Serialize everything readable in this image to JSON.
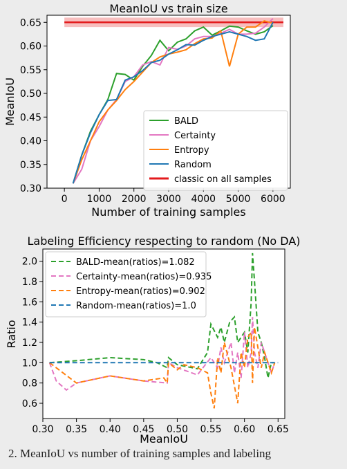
{
  "chart_data": [
    {
      "type": "line",
      "title": "MeanIoU vs train size",
      "xlabel": "Number of training samples",
      "ylabel": "MeanIoU",
      "xlim": [
        -500,
        6500
      ],
      "ylim": [
        0.3,
        0.665
      ],
      "xticks": [
        0,
        1000,
        2000,
        3000,
        4000,
        5000,
        6000
      ],
      "yticks": [
        0.3,
        0.35,
        0.4,
        0.45,
        0.5,
        0.55,
        0.6,
        0.65
      ],
      "grid": false,
      "legend_position": "lower-right",
      "reference_line": {
        "name": "classic on all samples",
        "value": 0.65,
        "band": [
          0.64,
          0.66
        ],
        "color": "#e31a1c",
        "band_color": "#f4a3a3"
      },
      "series": [
        {
          "name": "BALD",
          "color": "#2ca02c",
          "x": [
            250,
            500,
            750,
            1000,
            1250,
            1500,
            1750,
            2000,
            2250,
            2500,
            2750,
            3000,
            3250,
            3500,
            3750,
            4000,
            4250,
            4500,
            4750,
            5000,
            5250,
            5500,
            5750,
            6000
          ],
          "y": [
            0.31,
            0.37,
            0.42,
            0.455,
            0.487,
            0.542,
            0.54,
            0.528,
            0.557,
            0.58,
            0.612,
            0.59,
            0.608,
            0.615,
            0.632,
            0.64,
            0.623,
            0.632,
            0.642,
            0.64,
            0.632,
            0.625,
            0.63,
            0.643
          ]
        },
        {
          "name": "Certainty",
          "color": "#e377c2",
          "x": [
            250,
            500,
            750,
            1000,
            1250,
            1500,
            1750,
            2000,
            2250,
            2500,
            2750,
            3000,
            3250,
            3500,
            3750,
            4000,
            4250,
            4500,
            4750,
            5000,
            5250,
            5500,
            5750,
            6000
          ],
          "y": [
            0.31,
            0.34,
            0.4,
            0.43,
            0.465,
            0.487,
            0.525,
            0.535,
            0.56,
            0.567,
            0.56,
            0.597,
            0.593,
            0.6,
            0.615,
            0.62,
            0.62,
            0.627,
            0.635,
            0.625,
            0.625,
            0.627,
            0.64,
            0.658
          ]
        },
        {
          "name": "Entropy",
          "color": "#ff7f0e",
          "x": [
            250,
            500,
            750,
            1000,
            1250,
            1500,
            1750,
            2000,
            2250,
            2500,
            2750,
            3000,
            3250,
            3500,
            3750,
            4000,
            4250,
            4500,
            4750,
            5000,
            5250,
            5500,
            5750,
            6000
          ],
          "y": [
            0.31,
            0.36,
            0.4,
            0.44,
            0.465,
            0.485,
            0.508,
            0.525,
            0.545,
            0.565,
            0.577,
            0.583,
            0.587,
            0.592,
            0.605,
            0.615,
            0.617,
            0.632,
            0.557,
            0.625,
            0.64,
            0.64,
            0.653,
            0.648
          ]
        },
        {
          "name": "Random",
          "color": "#1f77b4",
          "x": [
            250,
            500,
            750,
            1000,
            1250,
            1500,
            1750,
            2000,
            2250,
            2500,
            2750,
            3000,
            3250,
            3500,
            3750,
            4000,
            4250,
            4500,
            4750,
            5000,
            5250,
            5500,
            5750,
            6000
          ],
          "y": [
            0.31,
            0.37,
            0.417,
            0.455,
            0.485,
            0.487,
            0.528,
            0.535,
            0.548,
            0.565,
            0.57,
            0.583,
            0.592,
            0.603,
            0.602,
            0.612,
            0.62,
            0.625,
            0.63,
            0.625,
            0.62,
            0.612,
            0.615,
            0.65
          ]
        }
      ]
    },
    {
      "type": "line",
      "title": "Labeling Efficiency respecting to random (No DA)",
      "xlabel": "MeanIoU",
      "ylabel": "Ratio",
      "xlim": [
        0.3,
        0.66
      ],
      "ylim": [
        0.45,
        2.12
      ],
      "xticks": [
        0.3,
        0.35,
        0.4,
        0.45,
        0.5,
        0.55,
        0.6,
        0.65
      ],
      "yticks": [
        0.6,
        0.8,
        1.0,
        1.2,
        1.4,
        1.6,
        1.8,
        2.0
      ],
      "grid": false,
      "legend_position": "top-left",
      "series": [
        {
          "name": "BALD-mean(ratios)=1.082",
          "color": "#2ca02c",
          "dashed": true,
          "x": [
            0.31,
            0.35,
            0.4,
            0.45,
            0.47,
            0.485,
            0.487,
            0.5,
            0.53,
            0.545,
            0.55,
            0.56,
            0.565,
            0.57,
            0.578,
            0.585,
            0.59,
            0.595,
            0.6,
            0.605,
            0.61,
            0.612,
            0.615,
            0.62,
            0.625,
            0.63,
            0.635,
            0.64,
            0.645
          ],
          "y": [
            1.0,
            1.02,
            1.05,
            1.03,
            1.0,
            0.95,
            1.05,
            0.98,
            0.94,
            1.1,
            1.38,
            1.25,
            1.35,
            1.2,
            1.4,
            1.45,
            1.2,
            1.25,
            1.3,
            1.1,
            1.6,
            2.08,
            1.8,
            1.3,
            1.2,
            1.05,
            0.85,
            1.0,
            1.0
          ]
        },
        {
          "name": "Certainty-mean(ratios)=0.935",
          "color": "#e377c2",
          "dashed": true,
          "x": [
            0.31,
            0.32,
            0.335,
            0.35,
            0.4,
            0.45,
            0.485,
            0.487,
            0.5,
            0.53,
            0.55,
            0.56,
            0.565,
            0.57,
            0.58,
            0.585,
            0.59,
            0.595,
            0.6,
            0.605,
            0.61,
            0.612,
            0.615,
            0.62,
            0.625,
            0.63,
            0.64,
            0.645
          ],
          "y": [
            1.0,
            0.82,
            0.73,
            0.8,
            0.87,
            0.82,
            0.8,
            1.0,
            0.95,
            0.88,
            1.05,
            0.95,
            1.15,
            1.0,
            1.2,
            0.9,
            1.1,
            0.85,
            1.3,
            0.95,
            1.1,
            1.45,
            1.1,
            0.95,
            1.2,
            1.1,
            0.9,
            1.0
          ]
        },
        {
          "name": "Entropy-mean(ratios)=0.902",
          "color": "#ff7f0e",
          "dashed": true,
          "x": [
            0.31,
            0.35,
            0.4,
            0.45,
            0.48,
            0.485,
            0.487,
            0.5,
            0.51,
            0.53,
            0.545,
            0.55,
            0.555,
            0.56,
            0.565,
            0.57,
            0.58,
            0.59,
            0.595,
            0.6,
            0.605,
            0.61,
            0.612,
            0.615,
            0.62,
            0.625,
            0.63,
            0.64,
            0.645
          ],
          "y": [
            1.0,
            0.8,
            0.87,
            0.82,
            0.85,
            0.8,
            1.0,
            0.93,
            0.98,
            0.95,
            0.9,
            0.7,
            0.55,
            1.05,
            0.9,
            1.2,
            0.95,
            0.6,
            1.1,
            0.95,
            1.25,
            1.3,
            0.8,
            1.35,
            1.15,
            0.95,
            1.1,
            0.9,
            1.0
          ]
        },
        {
          "name": "Random-mean(ratios)=1.0",
          "color": "#1f77b4",
          "dashed": true,
          "x": [
            0.31,
            0.65
          ],
          "y": [
            1.0,
            1.0
          ]
        }
      ]
    }
  ],
  "caption": "2. MeanIoU vs number of training samples and labeling"
}
